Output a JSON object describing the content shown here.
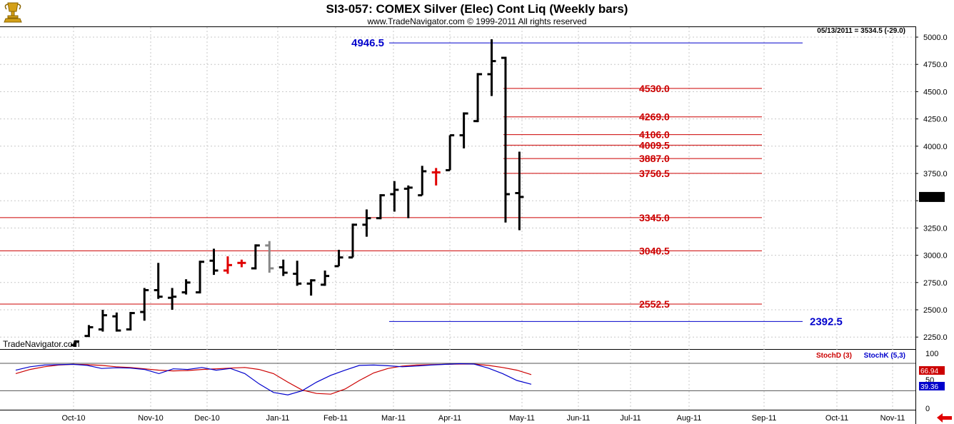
{
  "header": {
    "title": "SI3-057:  COMEX Silver (Elec) Cont Liq  (Weekly bars)",
    "subtitle": "www.TradeNavigator.com © 1999-2011 All rights reserved",
    "last_quote": "05/13/2011 = 3534.5 (-29.0)",
    "watermark": "TradeNavigator.com"
  },
  "colors": {
    "bar": "#000000",
    "bar_red": "#e00000",
    "bar_gray": "#888888",
    "support_line": "#cc0000",
    "target_line": "#0000cc",
    "stoch_d": "#cc0000",
    "stoch_k": "#0000cc",
    "grid": "#c8c8c8"
  },
  "chart_data": [
    {
      "type": "ohlc",
      "title": "SI3-057:  COMEX Silver (Elec) Cont Liq  (Weekly bars)",
      "ylim": [
        2150,
        5050
      ],
      "yticks": [
        5000.0,
        4750.0,
        4500.0,
        4250.0,
        4000.0,
        3750.0,
        3500.0,
        3250.0,
        3000.0,
        2750.0,
        2500.0,
        2250.0
      ],
      "ytick_labels": [
        "5000.0",
        "4750.0",
        "4500.0",
        "4250.0",
        "4000.0",
        "3750.0",
        "",
        "3250.0",
        "3000.0",
        "2750.0",
        "2500.0",
        "2250.0"
      ],
      "last_price": 3534.5,
      "last_price_label": "3534.5",
      "xticks": [
        "Oct-10",
        "Nov-10",
        "Dec-10",
        "Jan-11",
        "Feb-11",
        "Mar-11",
        "Apr-11",
        "May-11",
        "Jun-11",
        "Jul-11",
        "Aug-11",
        "Sep-11",
        "Oct-11",
        "Nov-11"
      ],
      "grid": true,
      "bars": [
        {
          "o": 2175,
          "h": 2220,
          "l": 2160,
          "c": 2210,
          "color": "black"
        },
        {
          "o": 2260,
          "h": 2360,
          "l": 2250,
          "c": 2340,
          "color": "black"
        },
        {
          "o": 2320,
          "h": 2500,
          "l": 2300,
          "c": 2450,
          "color": "black"
        },
        {
          "o": 2440,
          "h": 2475,
          "l": 2300,
          "c": 2310,
          "color": "black"
        },
        {
          "o": 2320,
          "h": 2480,
          "l": 2310,
          "c": 2470,
          "color": "black"
        },
        {
          "o": 2480,
          "h": 2700,
          "l": 2400,
          "c": 2680,
          "color": "black"
        },
        {
          "o": 2680,
          "h": 2930,
          "l": 2600,
          "c": 2620,
          "color": "black"
        },
        {
          "o": 2610,
          "h": 2700,
          "l": 2500,
          "c": 2620,
          "color": "black"
        },
        {
          "o": 2660,
          "h": 2780,
          "l": 2640,
          "c": 2750,
          "color": "black"
        },
        {
          "o": 2660,
          "h": 2950,
          "l": 2650,
          "c": 2940,
          "color": "black"
        },
        {
          "o": 2950,
          "h": 3060,
          "l": 2820,
          "c": 2860,
          "color": "black"
        },
        {
          "o": 2860,
          "h": 2990,
          "l": 2830,
          "c": 2910,
          "color": "red"
        },
        {
          "o": 2930,
          "h": 2960,
          "l": 2890,
          "c": 2930,
          "color": "red"
        },
        {
          "o": 2880,
          "h": 3100,
          "l": 2870,
          "c": 3090,
          "color": "black"
        },
        {
          "o": 3090,
          "h": 3130,
          "l": 2840,
          "c": 2880,
          "color": "gray"
        },
        {
          "o": 2890,
          "h": 2960,
          "l": 2810,
          "c": 2840,
          "color": "black"
        },
        {
          "o": 2830,
          "h": 2950,
          "l": 2720,
          "c": 2740,
          "color": "black"
        },
        {
          "o": 2740,
          "h": 2780,
          "l": 2630,
          "c": 2770,
          "color": "black"
        },
        {
          "o": 2730,
          "h": 2860,
          "l": 2720,
          "c": 2810,
          "color": "black"
        },
        {
          "o": 2900,
          "h": 3050,
          "l": 2900,
          "c": 2980,
          "color": "black"
        },
        {
          "o": 2980,
          "h": 3290,
          "l": 2980,
          "c": 3280,
          "color": "black"
        },
        {
          "o": 3280,
          "h": 3420,
          "l": 3170,
          "c": 3340,
          "color": "black"
        },
        {
          "o": 3340,
          "h": 3560,
          "l": 3330,
          "c": 3550,
          "color": "black"
        },
        {
          "o": 3560,
          "h": 3680,
          "l": 3400,
          "c": 3600,
          "color": "black"
        },
        {
          "o": 3610,
          "h": 3640,
          "l": 3340,
          "c": 3620,
          "color": "black"
        },
        {
          "o": 3550,
          "h": 3820,
          "l": 3550,
          "c": 3770,
          "color": "black"
        },
        {
          "o": 3760,
          "h": 3800,
          "l": 3640,
          "c": 3760,
          "color": "red"
        },
        {
          "o": 3780,
          "h": 4100,
          "l": 3780,
          "c": 4100,
          "color": "black"
        },
        {
          "o": 4100,
          "h": 4310,
          "l": 3980,
          "c": 4300,
          "color": "black"
        },
        {
          "o": 4230,
          "h": 4670,
          "l": 4220,
          "c": 4660,
          "color": "black"
        },
        {
          "o": 4660,
          "h": 4980,
          "l": 4460,
          "c": 4780,
          "color": "black"
        },
        {
          "o": 4810,
          "h": 4820,
          "l": 3300,
          "c": 3560,
          "color": "black"
        },
        {
          "o": 3570,
          "h": 3950,
          "l": 3230,
          "c": 3534.5,
          "color": "black"
        }
      ],
      "levels_red": [
        {
          "value": 4530.0,
          "label": "4530.0",
          "span": "from-peak"
        },
        {
          "value": 4269.0,
          "label": "4269.0",
          "span": "from-peak"
        },
        {
          "value": 4106.0,
          "label": "4106.0",
          "span": "from-peak"
        },
        {
          "value": 4009.5,
          "label": "4009.5",
          "span": "from-peak"
        },
        {
          "value": 3887.0,
          "label": "3887.0",
          "span": "from-peak"
        },
        {
          "value": 3750.5,
          "label": "3750.5",
          "span": "from-peak"
        },
        {
          "value": 3345.0,
          "label": "3345.0",
          "span": "full"
        },
        {
          "value": 3040.5,
          "label": "3040.5",
          "span": "full"
        },
        {
          "value": 2552.5,
          "label": "2552.5",
          "span": "full"
        }
      ],
      "levels_blue": [
        {
          "value": 4946.5,
          "label": "4946.5",
          "label_side": "left"
        },
        {
          "value": 2392.5,
          "label": "2392.5",
          "label_side": "right"
        }
      ]
    },
    {
      "type": "line",
      "ylim": [
        0,
        100
      ],
      "yticks": [
        100,
        50,
        0
      ],
      "ytick_labels": [
        "100",
        "50",
        "0"
      ],
      "legend": [
        "StochD (3)",
        "StochK (5,3)"
      ],
      "legend_position": "top-right",
      "last_values": {
        "stoch_d": "66.94",
        "stoch_k": "39.36"
      },
      "series": [
        {
          "name": "StochD (3)",
          "values": [
            70,
            82,
            90,
            95,
            97,
            96,
            94,
            90,
            88,
            84,
            80,
            78,
            79,
            82,
            84,
            86,
            88,
            82,
            70,
            45,
            22,
            12,
            10,
            25,
            50,
            72,
            85,
            92,
            95,
            96,
            97,
            98,
            98,
            94,
            88,
            80,
            67
          ]
        },
        {
          "name": "StochK (5,3)",
          "values": [
            80,
            90,
            95,
            96,
            97,
            94,
            85,
            87,
            86,
            82,
            70,
            84,
            82,
            88,
            80,
            85,
            70,
            40,
            15,
            8,
            20,
            45,
            65,
            80,
            94,
            95,
            93,
            90,
            92,
            95,
            97,
            99,
            98,
            86,
            70,
            50,
            39
          ]
        }
      ]
    }
  ]
}
